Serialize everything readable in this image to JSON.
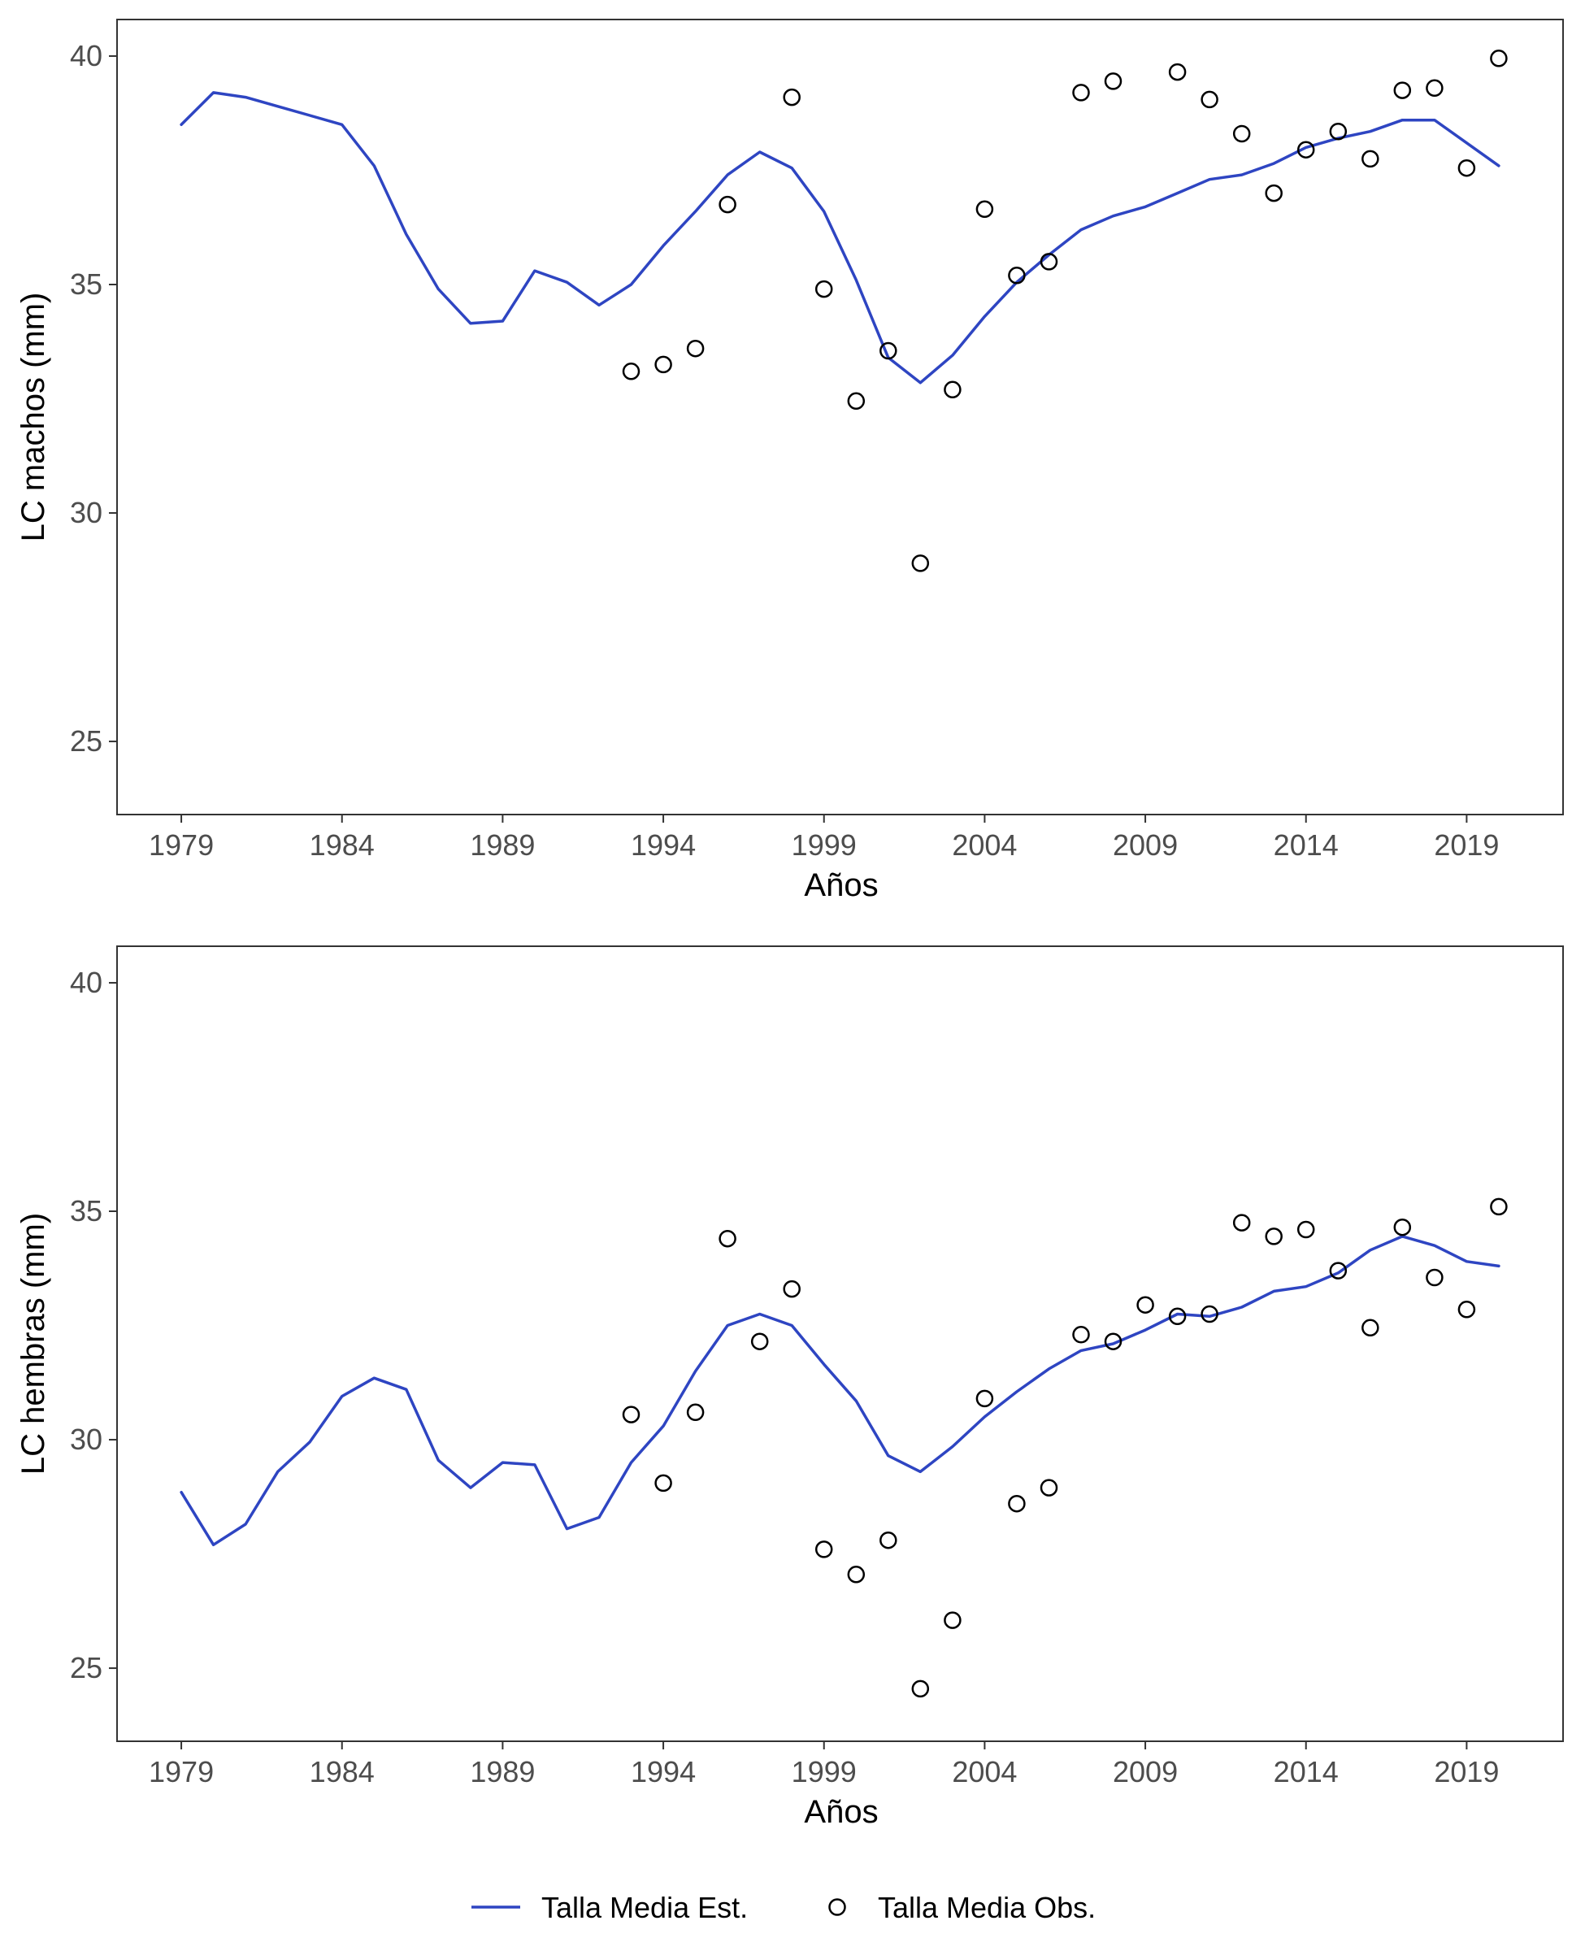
{
  "chart_data": [
    {
      "type": "line",
      "xlabel": "Años",
      "ylabel": "LC machos (mm)",
      "xlim": [
        1977,
        2022
      ],
      "ylim": [
        23.4,
        40.8
      ],
      "x_ticks": [
        1979,
        1984,
        1989,
        1994,
        1999,
        2004,
        2009,
        2014,
        2019
      ],
      "y_ticks": [
        25,
        30,
        35,
        40
      ],
      "grid": false,
      "series": [
        {
          "name": "Talla Media Est.",
          "type": "line",
          "color": "#2e45c2",
          "x": [
            1979,
            1980,
            1981,
            1982,
            1983,
            1984,
            1985,
            1986,
            1987,
            1988,
            1989,
            1990,
            1991,
            1992,
            1993,
            1994,
            1995,
            1996,
            1997,
            1998,
            1999,
            2000,
            2001,
            2002,
            2003,
            2004,
            2005,
            2006,
            2007,
            2008,
            2009,
            2010,
            2011,
            2012,
            2013,
            2014,
            2015,
            2016,
            2017,
            2018,
            2019,
            2020
          ],
          "y": [
            38.5,
            39.2,
            39.1,
            38.9,
            38.7,
            38.5,
            37.6,
            36.1,
            34.9,
            34.15,
            34.2,
            35.3,
            35.05,
            34.55,
            35.0,
            35.85,
            36.6,
            37.4,
            37.9,
            37.55,
            36.6,
            35.1,
            33.4,
            32.85,
            33.45,
            34.3,
            35.05,
            35.65,
            36.2,
            36.5,
            36.7,
            37.0,
            37.3,
            37.4,
            37.65,
            38.0,
            38.2,
            38.35,
            38.6,
            38.6,
            38.1,
            37.6
          ]
        },
        {
          "name": "Talla Media Obs.",
          "type": "scatter",
          "color": "#000000",
          "x": [
            1993,
            1994,
            1995,
            1996,
            1998,
            1999,
            2000,
            2001,
            2002,
            2003,
            2004,
            2005,
            2006,
            2007,
            2008,
            2010,
            2011,
            2012,
            2013,
            2014,
            2015,
            2016,
            2017,
            2018,
            2019,
            2020
          ],
          "y": [
            33.1,
            33.25,
            33.6,
            36.75,
            39.1,
            34.9,
            32.45,
            33.55,
            28.9,
            32.7,
            36.65,
            35.2,
            35.5,
            39.2,
            39.45,
            39.65,
            39.05,
            38.3,
            37.0,
            37.95,
            38.35,
            37.75,
            39.25,
            39.3,
            37.55,
            39.95
          ]
        }
      ]
    },
    {
      "type": "line",
      "xlabel": "Años",
      "ylabel": "LC hembras (mm)",
      "xlim": [
        1977,
        2022
      ],
      "ylim": [
        23.4,
        40.8
      ],
      "x_ticks": [
        1979,
        1984,
        1989,
        1994,
        1999,
        2004,
        2009,
        2014,
        2019
      ],
      "y_ticks": [
        25,
        30,
        35,
        40
      ],
      "grid": false,
      "series": [
        {
          "name": "Talla Media Est.",
          "type": "line",
          "color": "#2e45c2",
          "x": [
            1979,
            1980,
            1981,
            1982,
            1983,
            1984,
            1985,
            1986,
            1987,
            1988,
            1989,
            1990,
            1991,
            1992,
            1993,
            1994,
            1995,
            1996,
            1997,
            1998,
            1999,
            2000,
            2001,
            2002,
            2003,
            2004,
            2005,
            2006,
            2007,
            2008,
            2009,
            2010,
            2011,
            2012,
            2013,
            2014,
            2015,
            2016,
            2017,
            2018,
            2019,
            2020
          ],
          "y": [
            28.85,
            27.7,
            28.15,
            29.3,
            29.95,
            30.95,
            31.35,
            31.1,
            29.55,
            28.95,
            29.5,
            29.45,
            28.05,
            28.3,
            29.5,
            30.3,
            31.5,
            32.5,
            32.75,
            32.5,
            31.65,
            30.85,
            29.65,
            29.3,
            29.85,
            30.5,
            31.05,
            31.55,
            31.95,
            32.1,
            32.4,
            32.75,
            32.7,
            32.9,
            33.25,
            33.35,
            33.65,
            34.15,
            34.45,
            34.25,
            33.9,
            33.8
          ]
        },
        {
          "name": "Talla Media Obs.",
          "type": "scatter",
          "color": "#000000",
          "x": [
            1993,
            1994,
            1995,
            1996,
            1997,
            1998,
            1999,
            2000,
            2001,
            2002,
            2003,
            2004,
            2005,
            2006,
            2007,
            2008,
            2009,
            2010,
            2011,
            2012,
            2013,
            2014,
            2015,
            2016,
            2017,
            2018,
            2019,
            2020
          ],
          "y": [
            30.55,
            29.05,
            30.6,
            34.4,
            32.15,
            33.3,
            27.6,
            27.05,
            27.8,
            24.55,
            26.05,
            30.9,
            28.6,
            28.95,
            32.3,
            32.15,
            32.95,
            32.7,
            32.75,
            34.75,
            34.45,
            34.6,
            33.7,
            32.45,
            34.65,
            33.55,
            32.85,
            35.1
          ]
        }
      ]
    }
  ],
  "legend": {
    "position": "bottom",
    "items": [
      {
        "label": "Talla Media Est.",
        "symbol": "line",
        "color": "#2e45c2"
      },
      {
        "label": "Talla Media Obs.",
        "symbol": "open-circle",
        "color": "#000000"
      }
    ]
  }
}
